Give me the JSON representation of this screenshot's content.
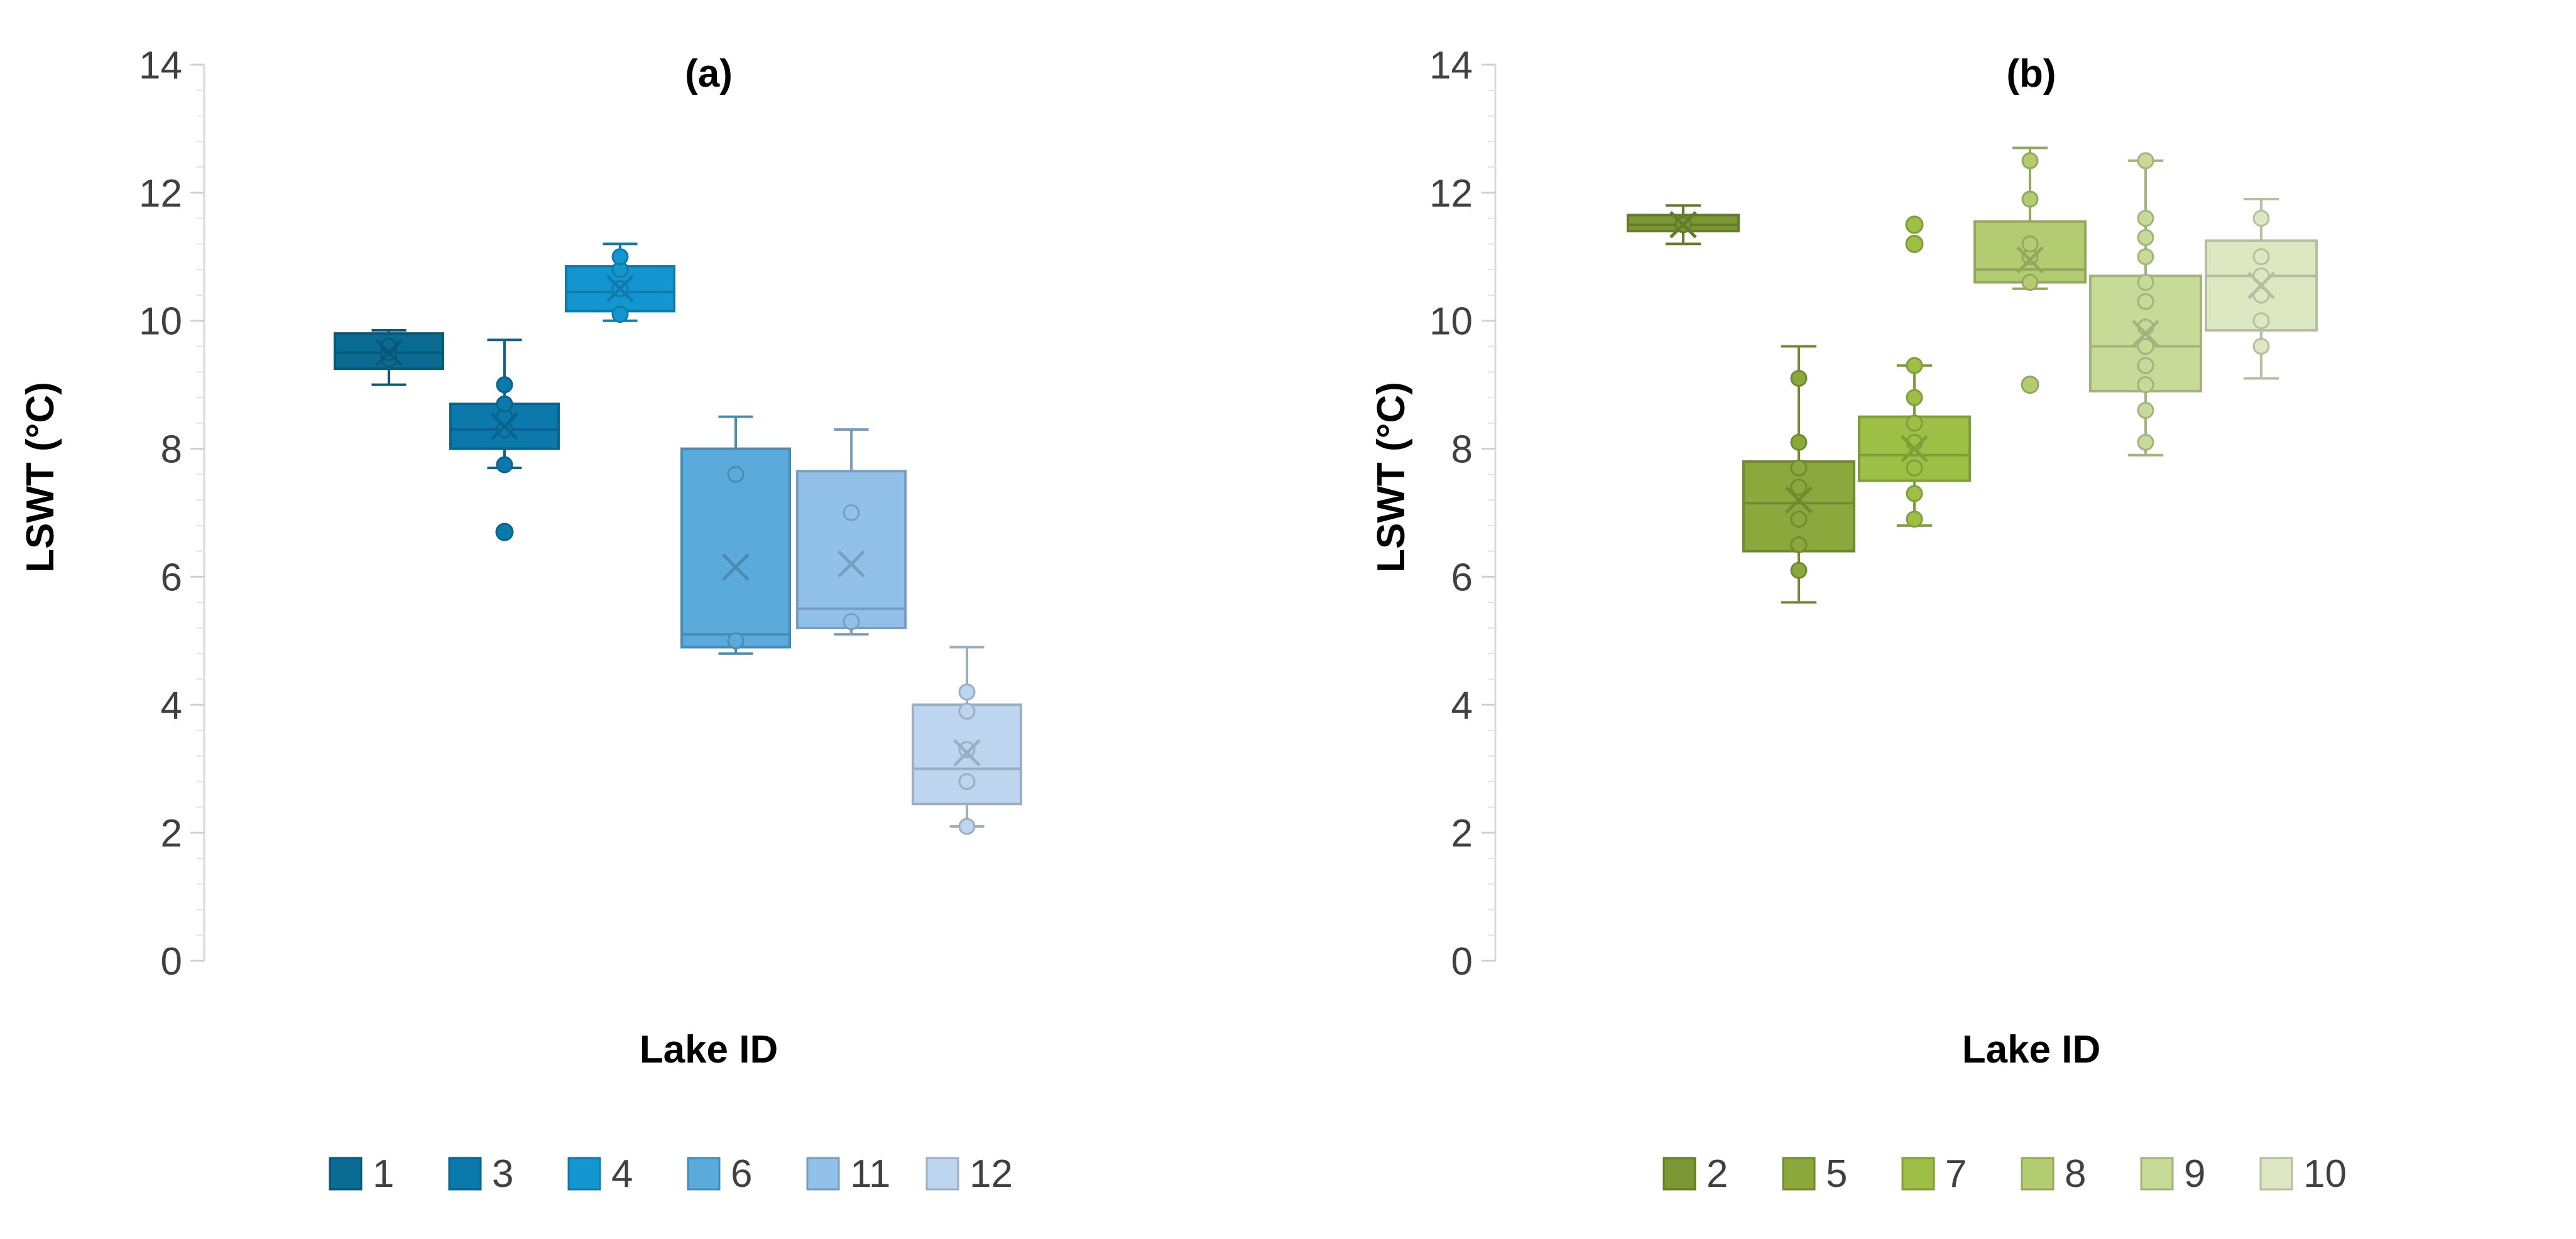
{
  "chart_data": [
    {
      "type": "box",
      "title": "(a)",
      "xlabel": "Lake ID",
      "ylabel": "LSWT (°C)",
      "ylim": [
        0,
        14
      ],
      "yticks": [
        "0",
        "2",
        "4",
        "6",
        "8",
        "10",
        "12",
        "14"
      ],
      "legend_position": "bottom",
      "series": [
        {
          "name": "1",
          "color": "#0a6c93",
          "min": 9.0,
          "q1": 9.25,
          "median": 9.5,
          "q3": 9.8,
          "max": 9.85,
          "mean": 9.5,
          "points": [
            9.4,
            9.5,
            9.6
          ],
          "outliers": []
        },
        {
          "name": "3",
          "color": "#0b79ab",
          "min": 7.7,
          "q1": 8.0,
          "median": 8.3,
          "q3": 8.7,
          "max": 9.7,
          "mean": 8.35,
          "points": [
            7.75,
            8.3,
            8.5,
            8.7,
            9.0
          ],
          "outliers": [
            6.7
          ]
        },
        {
          "name": "4",
          "color": "#1396cf",
          "min": 10.0,
          "q1": 10.15,
          "median": 10.45,
          "q3": 10.85,
          "max": 11.2,
          "mean": 10.5,
          "points": [
            10.1,
            10.5,
            10.8,
            11.0
          ],
          "outliers": []
        },
        {
          "name": "6",
          "color": "#5aaadb",
          "min": 4.8,
          "q1": 4.9,
          "median": 5.1,
          "q3": 8.0,
          "max": 8.5,
          "mean": 6.15,
          "points": [
            5.0,
            7.6
          ],
          "outliers": []
        },
        {
          "name": "11",
          "color": "#91c1e8",
          "min": 5.1,
          "q1": 5.2,
          "median": 5.5,
          "q3": 7.65,
          "max": 8.3,
          "mean": 6.2,
          "points": [
            5.3,
            7.0
          ],
          "outliers": []
        },
        {
          "name": "12",
          "color": "#bdd5ee",
          "min": 2.1,
          "q1": 2.45,
          "median": 3.0,
          "q3": 4.0,
          "max": 4.9,
          "mean": 3.25,
          "points": [
            2.1,
            2.8,
            3.3,
            3.9,
            4.2
          ],
          "outliers": []
        }
      ]
    },
    {
      "type": "box",
      "title": "(b)",
      "xlabel": "Lake ID",
      "ylabel": "LSWT (°C)",
      "ylim": [
        0,
        14
      ],
      "yticks": [
        "0",
        "2",
        "4",
        "6",
        "8",
        "10",
        "12",
        "14"
      ],
      "legend_position": "bottom",
      "series": [
        {
          "name": "2",
          "color": "#7a9733",
          "min": 11.2,
          "q1": 11.4,
          "median": 11.5,
          "q3": 11.65,
          "max": 11.8,
          "mean": 11.5,
          "points": [
            11.5
          ],
          "outliers": []
        },
        {
          "name": "5",
          "color": "#8aa83c",
          "min": 5.6,
          "q1": 6.4,
          "median": 7.15,
          "q3": 7.8,
          "max": 9.6,
          "mean": 7.2,
          "points": [
            6.1,
            6.5,
            6.9,
            7.4,
            7.7,
            8.1,
            9.1
          ],
          "outliers": []
        },
        {
          "name": "7",
          "color": "#9dbf45",
          "min": 6.8,
          "q1": 7.5,
          "median": 7.9,
          "q3": 8.5,
          "max": 9.3,
          "mean": 8.0,
          "points": [
            6.9,
            7.3,
            7.7,
            8.1,
            8.4,
            8.8,
            9.3
          ],
          "outliers": [
            11.2,
            11.5
          ]
        },
        {
          "name": "8",
          "color": "#b3cc72",
          "min": 10.5,
          "q1": 10.6,
          "median": 10.8,
          "q3": 11.55,
          "max": 12.7,
          "mean": 10.95,
          "points": [
            10.6,
            11.0,
            11.2,
            11.9,
            12.5
          ],
          "outliers": [
            9.0
          ]
        },
        {
          "name": "9",
          "color": "#c7da98",
          "min": 7.9,
          "q1": 8.9,
          "median": 9.6,
          "q3": 10.7,
          "max": 12.5,
          "mean": 9.8,
          "points": [
            8.1,
            8.6,
            9.0,
            9.3,
            9.6,
            9.9,
            10.3,
            10.6,
            11.0,
            11.3,
            11.6,
            12.5
          ],
          "outliers": []
        },
        {
          "name": "10",
          "color": "#dde8c2",
          "min": 9.1,
          "q1": 9.85,
          "median": 10.7,
          "q3": 11.25,
          "max": 11.9,
          "mean": 10.55,
          "points": [
            9.6,
            10.0,
            10.4,
            10.7,
            11.0,
            11.6
          ],
          "outliers": []
        }
      ]
    }
  ]
}
